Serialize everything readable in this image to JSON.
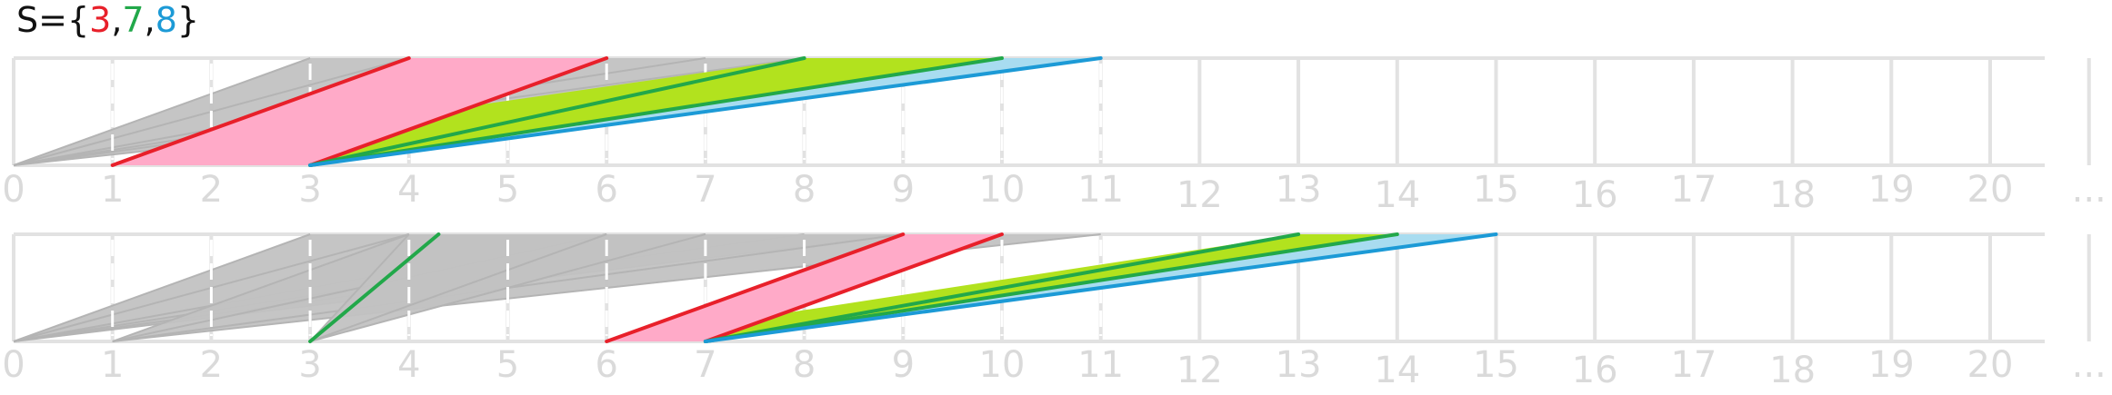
{
  "set": {
    "prefix": "S={",
    "suffix": "}",
    "elements": [
      {
        "value": "3",
        "color": "#e8202a",
        "sep": ","
      },
      {
        "value": "7",
        "color": "#22a84a",
        "sep": ","
      },
      {
        "value": "8",
        "color": "#1c9ad6",
        "sep": ""
      }
    ]
  },
  "axis": {
    "tick_labels": [
      "0",
      "1",
      "2",
      "3",
      "4",
      "5",
      "6",
      "7",
      "8",
      "9",
      "10",
      "11",
      "12",
      "13",
      "14",
      "15",
      "16",
      "17",
      "18",
      "19",
      "20",
      "..."
    ]
  },
  "colors": {
    "grid": "#e2e2e2",
    "gray_fill": "#c2c2c2",
    "red": "#e8202a",
    "pink": "#ffaac8",
    "green": "#22a84a",
    "lime": "#b2e21e",
    "blue": "#1c9ad6",
    "light_blue": "#a8dcf0"
  },
  "rows": [
    {
      "gray_fans": [
        {
          "start": 0,
          "ends": [
            3,
            4,
            6,
            7,
            8,
            10
          ]
        }
      ],
      "moves": [
        {
          "from": 1,
          "to": 4,
          "color": "red"
        },
        {
          "from": 3,
          "to": 6,
          "color": "red"
        },
        {
          "from": 3,
          "to": 8,
          "color": "green"
        },
        {
          "from": 3,
          "to": 10,
          "color": "green"
        },
        {
          "from": 3,
          "to": 11,
          "color": "blue"
        }
      ],
      "fills": [
        {
          "color": "pink",
          "pts": [
            [
              1,
              0
            ],
            [
              4,
              1
            ],
            [
              6,
              1
            ],
            [
              3,
              0
            ]
          ]
        },
        {
          "color": "lime",
          "pts": [
            [
              4.6,
              0.55
            ],
            [
              8,
              1
            ],
            [
              10,
              1
            ],
            [
              3,
              0
            ]
          ]
        },
        {
          "color": "light_blue",
          "pts": [
            [
              3,
              0
            ],
            [
              10,
              1
            ],
            [
              11,
              1
            ]
          ]
        }
      ]
    },
    {
      "gray_fans": [
        {
          "start": 0,
          "ends": [
            3,
            4,
            6,
            7,
            8,
            9
          ]
        },
        {
          "start": 1,
          "ends": [
            4,
            6,
            9,
            11
          ]
        },
        {
          "start": 3,
          "ends": [
            4,
            6,
            7
          ]
        }
      ],
      "moves": [
        {
          "from": 3,
          "to": 4.3,
          "color": "green"
        },
        {
          "from": 6,
          "to": 9,
          "color": "red"
        },
        {
          "from": 7,
          "to": 10,
          "color": "red"
        },
        {
          "from": 7,
          "to": 13,
          "color": "green"
        },
        {
          "from": 7,
          "to": 14,
          "color": "green"
        },
        {
          "from": 7,
          "to": 15,
          "color": "blue"
        }
      ],
      "fills": [
        {
          "color": "pink",
          "pts": [
            [
              6,
              0
            ],
            [
              9,
              1
            ],
            [
              10,
              1
            ],
            [
              7,
              0
            ]
          ]
        },
        {
          "color": "lime",
          "pts": [
            [
              7.7,
              0.25
            ],
            [
              13,
              1
            ],
            [
              14,
              1
            ],
            [
              7,
              0
            ]
          ]
        },
        {
          "color": "light_blue",
          "pts": [
            [
              7,
              0
            ],
            [
              14,
              1
            ],
            [
              15,
              1
            ]
          ]
        }
      ]
    }
  ]
}
